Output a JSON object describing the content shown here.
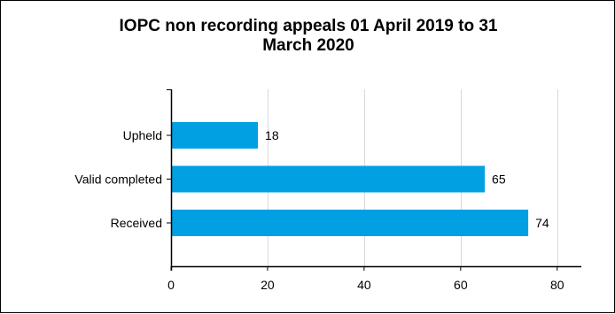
{
  "chart_data": {
    "type": "bar",
    "orientation": "horizontal",
    "title": "IOPC non recording appeals 01 April 2019 to 31\nMarch 2020",
    "categories": [
      "Upheld",
      "Valid completed",
      "Received"
    ],
    "values": [
      18,
      65,
      74
    ],
    "data_labels": [
      "18",
      "65",
      "74"
    ],
    "xlim": [
      0,
      85
    ],
    "xticks": [
      0,
      20,
      40,
      60,
      80
    ],
    "xtick_labels": [
      "0",
      "20",
      "40",
      "60",
      "80"
    ],
    "grid": "vertical",
    "legend": "none",
    "bar_color": "#00a0e3",
    "grid_color": "#d9d9d9",
    "xlabel": "",
    "ylabel": ""
  }
}
